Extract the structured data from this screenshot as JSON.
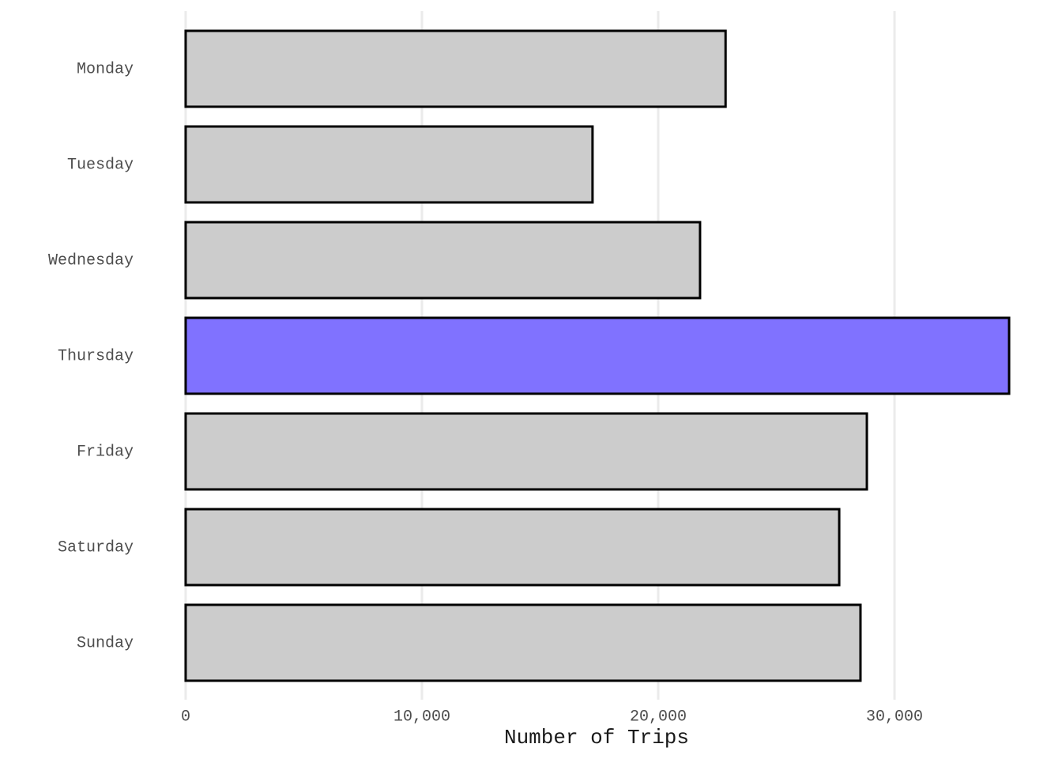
{
  "chart_data": {
    "type": "barh",
    "x_label": "Number of Trips",
    "categories": [
      "Monday",
      "Tuesday",
      "Wednesday",
      "Thursday",
      "Friday",
      "Saturday",
      "Sunday"
    ],
    "values": [
      22850,
      17220,
      21770,
      34850,
      28830,
      27660,
      28560
    ],
    "colors": [
      "#cccccc",
      "#cccccc",
      "#cccccc",
      "#8072ff",
      "#cccccc",
      "#cccccc",
      "#cccccc"
    ],
    "edge_color": "#000000",
    "xlim": [
      -500,
      35450
    ],
    "xticks": [
      0,
      {
        "value": 10000,
        "label": "10,000"
      },
      {
        "value": 20000,
        "label": "20,000"
      },
      {
        "value": 30000,
        "label": "30,000"
      }
    ],
    "grid": true
  }
}
